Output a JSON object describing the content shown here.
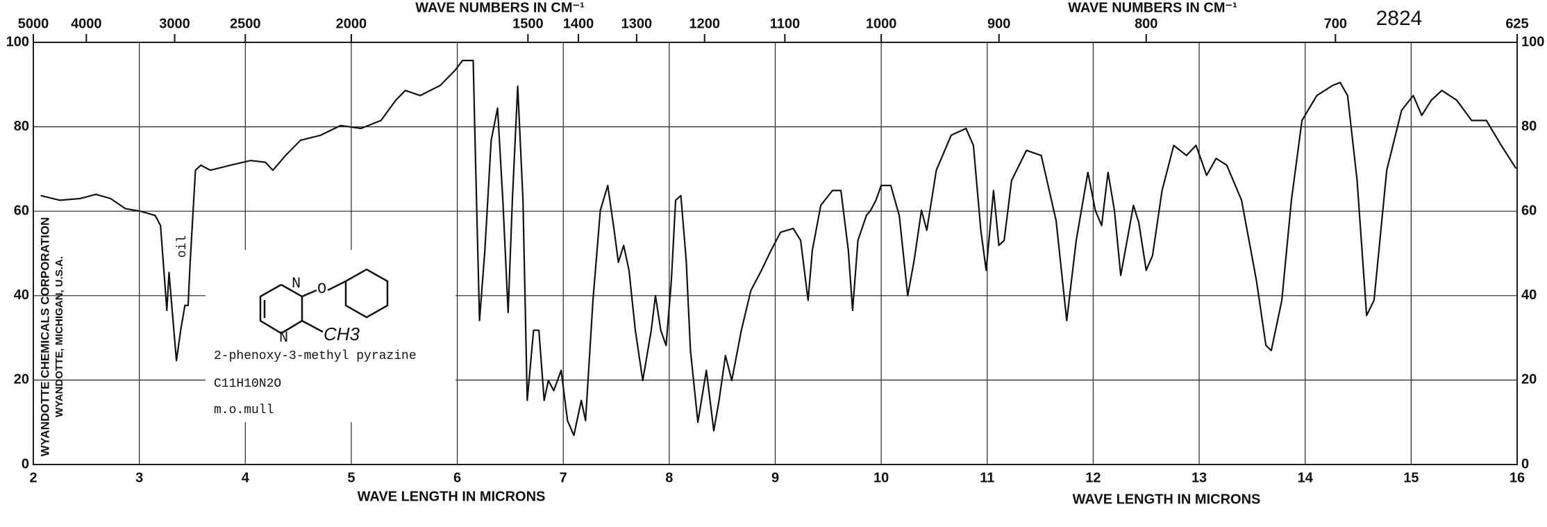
{
  "chart_data": {
    "type": "line",
    "top_axis_label": "WAVE NUMBERS IN CM⁻¹",
    "x_label": "WAVE LENGTH IN MICRONS",
    "spectrum_number": "2824",
    "company": "WYANDOTTE CHEMICALS CORPORATION",
    "company_location": "WYANDOTTE, MICHIGAN, U.S.A.",
    "band_note": "oil",
    "compound": {
      "atoms": [
        "N",
        "N",
        "O",
        "CH3"
      ],
      "name": "2-phenoxy-3-methyl pyrazine",
      "formula": "C11H10N2O",
      "method": "m.o.mull"
    },
    "color": "#111111",
    "grid": true,
    "xlim": [
      2,
      16
    ],
    "xticks": [
      2,
      3,
      4,
      5,
      6,
      7,
      8,
      9,
      10,
      11,
      12,
      13,
      14,
      15,
      16
    ],
    "ylim": [
      0,
      100
    ],
    "yticks": [
      0,
      20,
      40,
      60,
      80,
      100
    ],
    "x2ticks": [
      5000,
      4000,
      3000,
      2500,
      2000,
      1500,
      1400,
      1300,
      1200,
      1100,
      1000,
      900,
      800,
      700,
      625
    ],
    "x": [
      2.07,
      2.25,
      2.44,
      2.59,
      2.73,
      2.87,
      3.01,
      3.15,
      3.2,
      3.26,
      3.28,
      3.31,
      3.35,
      3.39,
      3.43,
      3.46,
      3.48,
      3.53,
      3.58,
      3.67,
      3.86,
      4.05,
      4.19,
      4.26,
      4.38,
      4.52,
      4.71,
      4.9,
      5.09,
      5.28,
      5.42,
      5.51,
      5.65,
      5.84,
      5.98,
      6.05,
      6.15,
      6.17,
      6.21,
      6.26,
      6.32,
      6.38,
      6.43,
      6.48,
      6.52,
      6.57,
      6.62,
      6.66,
      6.72,
      6.77,
      6.82,
      6.86,
      6.91,
      6.98,
      7.04,
      7.1,
      7.17,
      7.21,
      7.28,
      7.35,
      7.42,
      7.48,
      7.52,
      7.57,
      7.62,
      7.68,
      7.75,
      7.83,
      7.87,
      7.92,
      7.97,
      8.02,
      8.06,
      8.11,
      8.16,
      8.2,
      8.27,
      8.35,
      8.42,
      8.47,
      8.53,
      8.59,
      8.68,
      8.77,
      8.87,
      8.96,
      9.05,
      9.17,
      9.24,
      9.31,
      9.35,
      9.43,
      9.54,
      9.62,
      9.69,
      9.73,
      9.78,
      9.86,
      9.9,
      9.95,
      10.0,
      10.09,
      10.17,
      10.25,
      10.31,
      10.38,
      10.43,
      10.52,
      10.66,
      10.8,
      10.87,
      10.94,
      10.99,
      11.06,
      11.11,
      11.16,
      11.23,
      11.37,
      11.51,
      11.65,
      11.75,
      11.84,
      11.95,
      12.02,
      12.08,
      12.14,
      12.2,
      12.26,
      12.32,
      12.38,
      12.43,
      12.5,
      12.56,
      12.65,
      12.76,
      12.88,
      12.97,
      13.07,
      13.16,
      13.26,
      13.4,
      13.54,
      13.63,
      13.68,
      13.78,
      13.87,
      13.97,
      14.11,
      14.26,
      14.33,
      14.4,
      14.49,
      14.58,
      14.65,
      14.77,
      14.91,
      15.02,
      15.1,
      15.19,
      15.29,
      15.43,
      15.57,
      15.71,
      15.85,
      15.99
    ],
    "values": [
      63.7,
      62.6,
      63,
      64,
      63,
      60.6,
      60,
      59,
      56.6,
      36.5,
      45.5,
      36.5,
      24.6,
      31.8,
      37.7,
      37.7,
      48,
      69.7,
      70.9,
      69.7,
      70.9,
      72,
      71.6,
      69.7,
      73.2,
      76.8,
      78,
      80.3,
      79.6,
      81.5,
      86.3,
      88.6,
      87.4,
      89.8,
      93.4,
      95.7,
      95.7,
      74.4,
      34.1,
      50.7,
      76.8,
      84.4,
      62.6,
      36,
      62.6,
      89.6,
      62.6,
      15.2,
      31.8,
      31.8,
      15.2,
      19.9,
      17.5,
      22.3,
      10.4,
      6.9,
      15.2,
      10.4,
      38.9,
      60.2,
      66.1,
      55.5,
      47.9,
      51.9,
      46,
      31.8,
      19.9,
      31.8,
      40,
      31.8,
      28.2,
      43.6,
      62.6,
      63.7,
      48.3,
      27,
      10,
      22.3,
      8,
      15.2,
      25.8,
      19.9,
      31.8,
      41.2,
      46,
      50.7,
      55,
      55.9,
      53.1,
      38.9,
      50.7,
      61.4,
      64.9,
      64.9,
      50.7,
      36.5,
      53.1,
      59,
      60.2,
      62.6,
      66.1,
      66.1,
      59,
      40,
      48.3,
      60.2,
      55.5,
      69.7,
      78,
      79.6,
      75.6,
      55.5,
      46,
      64.9,
      51.9,
      53.1,
      67.3,
      74.4,
      73.2,
      57.8,
      34.1,
      53.1,
      69.2,
      60.2,
      56.6,
      69.2,
      60.2,
      44.8,
      53.1,
      61.4,
      57.3,
      46,
      49.5,
      64.9,
      75.6,
      73.2,
      75.6,
      68.5,
      72.5,
      70.9,
      62.6,
      43.6,
      28.2,
      27,
      38.9,
      62.6,
      81.5,
      87.4,
      89.8,
      90.5,
      87.4,
      67.3,
      35.3,
      38.9,
      69.7,
      83.9,
      87.4,
      82.7,
      86.3,
      88.6,
      86.3,
      81.5,
      81.5,
      75.6,
      70.1
    ]
  }
}
